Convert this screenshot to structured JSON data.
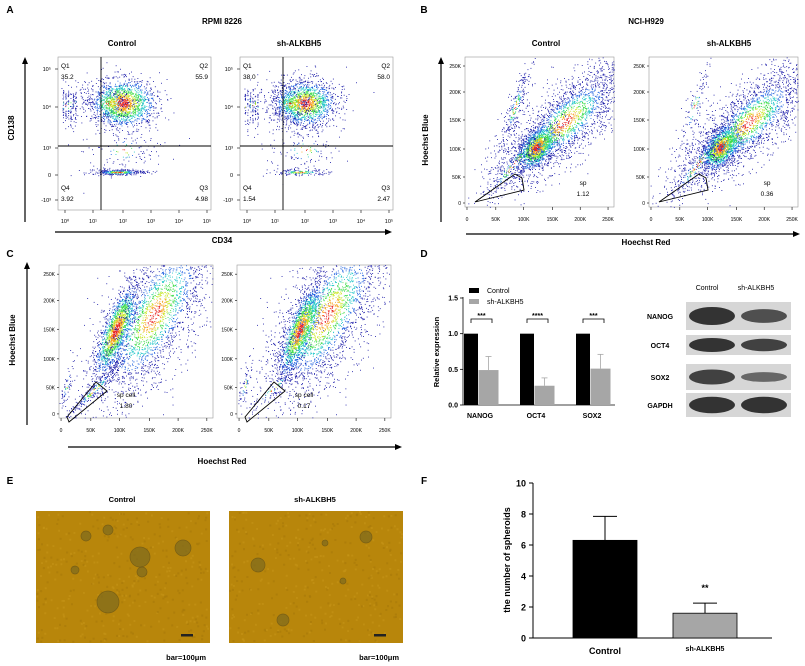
{
  "panels": {
    "A": {
      "letter": "A",
      "title": "RPMI 8226",
      "ylabel": "CD138",
      "xlabel": "CD34",
      "ytick_labels": [
        "10⁵",
        "10⁴",
        "10³",
        "0",
        "-10³"
      ],
      "xtick_labels": [
        "10⁰",
        "10¹",
        "10²",
        "10³",
        "10⁴",
        "10⁵"
      ],
      "plots": [
        {
          "title": "Control",
          "quadrants": [
            {
              "name": "Q1",
              "value": "35.2"
            },
            {
              "name": "Q2",
              "value": "55.9"
            },
            {
              "name": "Q3",
              "value": "4.98"
            },
            {
              "name": "Q4",
              "value": "3.92"
            }
          ]
        },
        {
          "title": "sh-ALKBH5",
          "quadrants": [
            {
              "name": "Q1",
              "value": "38.0"
            },
            {
              "name": "Q2",
              "value": "58.0"
            },
            {
              "name": "Q3",
              "value": "2.47"
            },
            {
              "name": "Q4",
              "value": "1.54"
            }
          ]
        }
      ]
    },
    "B": {
      "letter": "B",
      "title": "NCI-H929",
      "ylabel": "Hoechst Blue",
      "xlabel": "Hoechst Red",
      "ytick_labels": [
        "250K",
        "200K",
        "150K",
        "100K",
        "50K",
        "0"
      ],
      "xtick_labels": [
        "0",
        "50K",
        "100K",
        "150K",
        "200K",
        "250K"
      ],
      "plots": [
        {
          "title": "Control",
          "gate_label": "sp",
          "gate_value": "1.12"
        },
        {
          "title": "sh-ALKBH5",
          "gate_label": "sp",
          "gate_value": "0.36"
        }
      ]
    },
    "C": {
      "letter": "C",
      "ylabel": "Hoechst Blue",
      "xlabel": "Hoechst Red",
      "ytick_labels": [
        "250K",
        "200K",
        "150K",
        "100K",
        "50K",
        "0"
      ],
      "xtick_labels": [
        "0",
        "50K",
        "100K",
        "150K",
        "200K",
        "250K"
      ],
      "plots": [
        {
          "gate_label": "sp cell",
          "gate_value": "1.80"
        },
        {
          "gate_label": "sp cell",
          "gate_value": "0.17"
        }
      ]
    },
    "D": {
      "letter": "D",
      "western_blot": {
        "lanes": [
          "Control",
          "sh-ALKBH5"
        ],
        "proteins": [
          "NANOG",
          "OCT4",
          "SOX2",
          "GAPDH"
        ]
      }
    },
    "E": {
      "letter": "E",
      "images": [
        {
          "title": "Control",
          "scale_label": "bar=100μm"
        },
        {
          "title": "sh-ALKBH5",
          "scale_label": "bar=100μm"
        }
      ]
    },
    "F": {
      "letter": "F"
    }
  },
  "colors": {
    "control": "#000000",
    "sh_ALKBH5": "#a6a6a6",
    "micrograph": "#b8860b"
  },
  "chart_data": [
    {
      "panel": "D",
      "type": "bar",
      "ylabel": "Relative expression",
      "ylim": [
        0,
        1.5
      ],
      "yticks": [
        "0.0",
        "0.5",
        "1.0",
        "1.5"
      ],
      "categories": [
        "NANOG",
        "OCT4",
        "SOX2"
      ],
      "legend_position": "top-left",
      "series": [
        {
          "name": "Control",
          "values": [
            1.0,
            1.0,
            1.0
          ],
          "errors": [
            0,
            0,
            0
          ]
        },
        {
          "name": "sh-ALKBH5",
          "values": [
            0.49,
            0.27,
            0.51
          ],
          "errors": [
            0.19,
            0.11,
            0.2
          ]
        }
      ],
      "significance": [
        "***",
        "****",
        "***"
      ]
    },
    {
      "panel": "F",
      "type": "bar",
      "ylabel": "the number of spheroids",
      "ylim": [
        0,
        10
      ],
      "yticks": [
        "0",
        "2",
        "4",
        "6",
        "8",
        "10"
      ],
      "categories": [
        "Control",
        "sh-ALKBH5"
      ],
      "values": [
        6.3,
        1.6
      ],
      "errors": [
        1.55,
        0.65
      ],
      "significance": [
        "",
        "**"
      ]
    }
  ]
}
